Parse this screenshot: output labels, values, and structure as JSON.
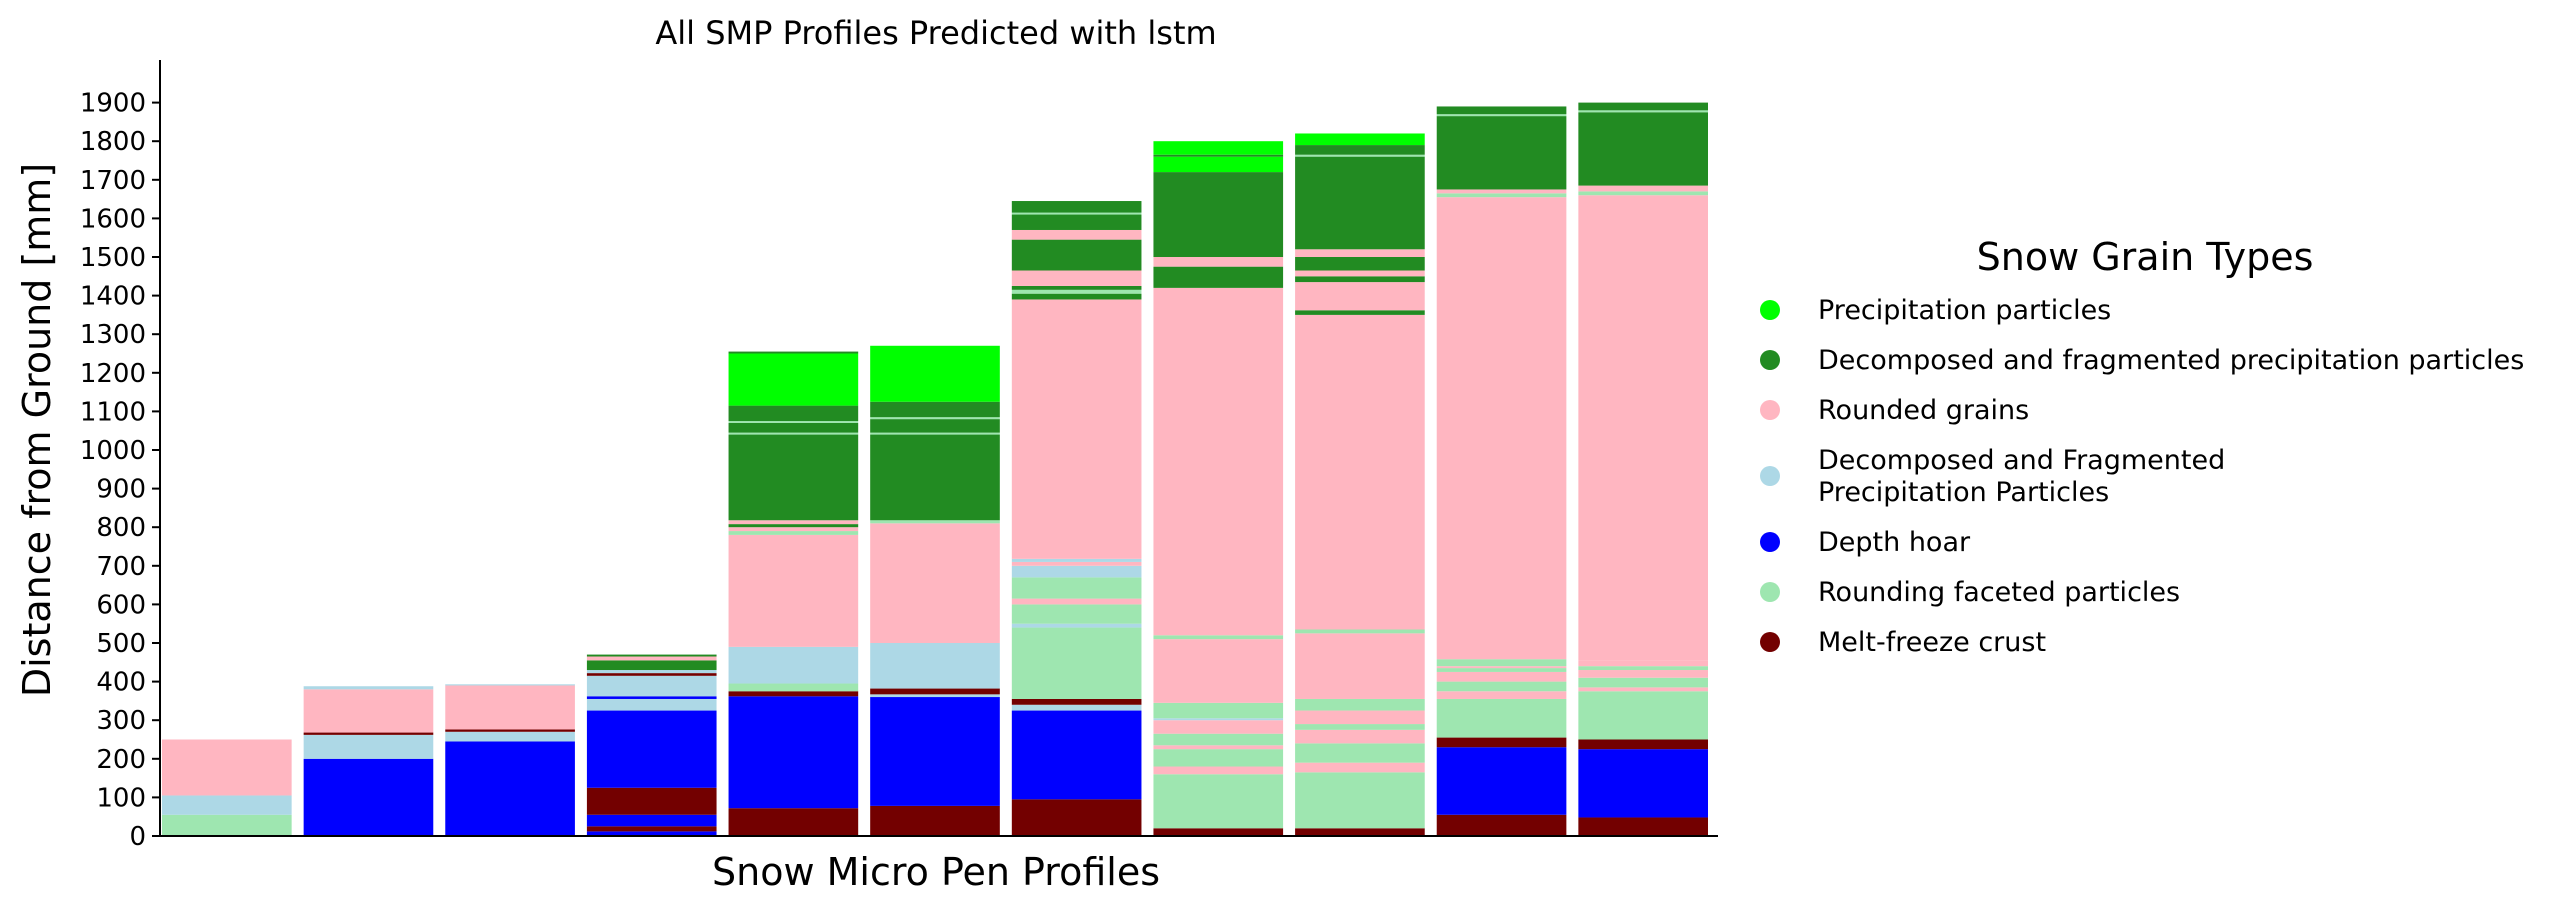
{
  "chart_data": {
    "type": "bar",
    "stacked": true,
    "title": "All SMP Profiles Predicted with lstm",
    "xlabel": "Snow Micro Pen Profiles",
    "ylabel": "Distance from Ground [mm]",
    "ylim": [
      0,
      2000
    ],
    "yticks": [
      0,
      100,
      200,
      300,
      400,
      500,
      600,
      700,
      800,
      900,
      1000,
      1100,
      1200,
      1300,
      1400,
      1500,
      1600,
      1700,
      1800,
      1900
    ],
    "grid": false,
    "legend_position": "right",
    "legend": {
      "title": "Snow Grain Types",
      "entries": [
        {
          "key": "pp",
          "label": "Precipitation particles",
          "color": "#00ff00"
        },
        {
          "key": "df",
          "label": "Decomposed and fragmented precipitation particles",
          "color": "#228b22"
        },
        {
          "key": "rg",
          "label": "Rounded grains",
          "color": "#ffb6c1"
        },
        {
          "key": "dfpp",
          "label_lines": [
            "Decomposed and Fragmented",
            "Precipitation Particles"
          ],
          "color": "#add8e6"
        },
        {
          "key": "dh",
          "label": "Depth hoar",
          "color": "#0000ff"
        },
        {
          "key": "rfp",
          "label": "Rounding faceted particles",
          "color": "#9ee6b0"
        },
        {
          "key": "mfcr",
          "label": "Melt-freeze crust",
          "color": "#730000"
        }
      ]
    },
    "profiles": [
      {
        "segments": [
          [
            "rfp",
            0,
            55
          ],
          [
            "dfpp",
            55,
            105
          ],
          [
            "rg",
            105,
            250
          ]
        ]
      },
      {
        "segments": [
          [
            "dh",
            0,
            200
          ],
          [
            "dfpp",
            200,
            262
          ],
          [
            "mfcr",
            262,
            268
          ],
          [
            "rg",
            268,
            380
          ],
          [
            "dfpp",
            380,
            388
          ]
        ]
      },
      {
        "segments": [
          [
            "dh",
            0,
            245
          ],
          [
            "dfpp",
            245,
            270
          ],
          [
            "mfcr",
            270,
            276
          ],
          [
            "rg",
            276,
            390
          ],
          [
            "dfpp",
            390,
            393
          ]
        ]
      },
      {
        "segments": [
          [
            "dh",
            0,
            12
          ],
          [
            "mfcr",
            12,
            25
          ],
          [
            "dh",
            25,
            55
          ],
          [
            "mfcr",
            55,
            125
          ],
          [
            "dh",
            125,
            325
          ],
          [
            "dfpp",
            325,
            355
          ],
          [
            "dh",
            355,
            362
          ],
          [
            "dfpp",
            362,
            415
          ],
          [
            "mfcr",
            415,
            422
          ],
          [
            "dfpp",
            422,
            430
          ],
          [
            "df",
            430,
            455
          ],
          [
            "rg",
            455,
            465
          ],
          [
            "df",
            465,
            470
          ]
        ]
      },
      {
        "segments": [
          [
            "mfcr",
            0,
            72
          ],
          [
            "dh",
            72,
            362
          ],
          [
            "mfcr",
            362,
            375
          ],
          [
            "rfp",
            375,
            395
          ],
          [
            "dfpp",
            395,
            490
          ],
          [
            "rg",
            490,
            780
          ],
          [
            "rfp",
            780,
            790
          ],
          [
            "rg",
            790,
            800
          ],
          [
            "df",
            800,
            808
          ],
          [
            "rg",
            808,
            818
          ],
          [
            "df",
            818,
            1040
          ],
          [
            "rfp",
            1040,
            1045
          ],
          [
            "df",
            1045,
            1070
          ],
          [
            "rfp",
            1070,
            1075
          ],
          [
            "df",
            1075,
            1115
          ],
          [
            "pp",
            1115,
            1250
          ],
          [
            "df",
            1250,
            1255
          ]
        ]
      },
      {
        "segments": [
          [
            "mfcr",
            0,
            78
          ],
          [
            "dh",
            78,
            360
          ],
          [
            "dfpp",
            360,
            367
          ],
          [
            "mfcr",
            367,
            382
          ],
          [
            "dfpp",
            382,
            500
          ],
          [
            "rg",
            500,
            810
          ],
          [
            "rfp",
            810,
            818
          ],
          [
            "df",
            818,
            1040
          ],
          [
            "rfp",
            1040,
            1045
          ],
          [
            "df",
            1045,
            1080
          ],
          [
            "rfp",
            1080,
            1085
          ],
          [
            "df",
            1085,
            1125
          ],
          [
            "pp",
            1125,
            1270
          ]
        ]
      },
      {
        "segments": [
          [
            "mfcr",
            0,
            95
          ],
          [
            "dh",
            95,
            325
          ],
          [
            "dfpp",
            325,
            340
          ],
          [
            "mfcr",
            340,
            355
          ],
          [
            "rfp",
            355,
            540
          ],
          [
            "dfpp",
            540,
            550
          ],
          [
            "rfp",
            550,
            600
          ],
          [
            "rg",
            600,
            615
          ],
          [
            "rfp",
            615,
            670
          ],
          [
            "dfpp",
            670,
            700
          ],
          [
            "rg",
            700,
            710
          ],
          [
            "dfpp",
            710,
            718
          ],
          [
            "rg",
            718,
            1390
          ],
          [
            "df",
            1390,
            1405
          ],
          [
            "rfp",
            1405,
            1415
          ],
          [
            "df",
            1415,
            1425
          ],
          [
            "rg",
            1425,
            1465
          ],
          [
            "df",
            1465,
            1545
          ],
          [
            "rg",
            1545,
            1570
          ],
          [
            "df",
            1570,
            1610
          ],
          [
            "rfp",
            1610,
            1615
          ],
          [
            "df",
            1615,
            1645
          ]
        ]
      },
      {
        "segments": [
          [
            "mfcr",
            0,
            20
          ],
          [
            "rfp",
            20,
            160
          ],
          [
            "rg",
            160,
            180
          ],
          [
            "rfp",
            180,
            225
          ],
          [
            "rg",
            225,
            235
          ],
          [
            "rfp",
            235,
            265
          ],
          [
            "rg",
            265,
            300
          ],
          [
            "dfpp",
            300,
            305
          ],
          [
            "rfp",
            305,
            345
          ],
          [
            "rg",
            345,
            510
          ],
          [
            "rfp",
            510,
            520
          ],
          [
            "rg",
            520,
            1420
          ],
          [
            "df",
            1420,
            1475
          ],
          [
            "rg",
            1475,
            1500
          ],
          [
            "df",
            1500,
            1720
          ],
          [
            "pp",
            1720,
            1760
          ],
          [
            "df",
            1760,
            1765
          ],
          [
            "pp",
            1765,
            1800
          ]
        ]
      },
      {
        "segments": [
          [
            "mfcr",
            0,
            20
          ],
          [
            "rfp",
            20,
            165
          ],
          [
            "rg",
            165,
            190
          ],
          [
            "rfp",
            190,
            240
          ],
          [
            "rg",
            240,
            275
          ],
          [
            "rfp",
            275,
            290
          ],
          [
            "rg",
            290,
            325
          ],
          [
            "rfp",
            325,
            355
          ],
          [
            "rg",
            355,
            525
          ],
          [
            "rfp",
            525,
            535
          ],
          [
            "rg",
            535,
            1350
          ],
          [
            "df",
            1350,
            1362
          ],
          [
            "rg",
            1362,
            1435
          ],
          [
            "df",
            1435,
            1450
          ],
          [
            "rg",
            1450,
            1465
          ],
          [
            "df",
            1465,
            1500
          ],
          [
            "rg",
            1500,
            1520
          ],
          [
            "df",
            1520,
            1760
          ],
          [
            "rfp",
            1760,
            1765
          ],
          [
            "df",
            1765,
            1790
          ],
          [
            "pp",
            1790,
            1820
          ]
        ]
      },
      {
        "segments": [
          [
            "mfcr",
            0,
            55
          ],
          [
            "dh",
            55,
            230
          ],
          [
            "mfcr",
            230,
            255
          ],
          [
            "rfp",
            255,
            355
          ],
          [
            "rg",
            355,
            375
          ],
          [
            "rfp",
            375,
            400
          ],
          [
            "rg",
            400,
            425
          ],
          [
            "rfp",
            425,
            435
          ],
          [
            "rg",
            435,
            440
          ],
          [
            "rfp",
            440,
            458
          ],
          [
            "rg",
            458,
            1655
          ],
          [
            "rfp",
            1655,
            1665
          ],
          [
            "rg",
            1665,
            1675
          ],
          [
            "df",
            1675,
            1865
          ],
          [
            "rfp",
            1865,
            1870
          ],
          [
            "df",
            1870,
            1890
          ]
        ]
      },
      {
        "segments": [
          [
            "mfcr",
            0,
            48
          ],
          [
            "dh",
            48,
            225
          ],
          [
            "mfcr",
            225,
            250
          ],
          [
            "rfp",
            250,
            375
          ],
          [
            "rg",
            375,
            385
          ],
          [
            "rfp",
            385,
            410
          ],
          [
            "rg",
            410,
            430
          ],
          [
            "rfp",
            430,
            440
          ],
          [
            "rg",
            440,
            455
          ],
          [
            "rg",
            455,
            1660
          ],
          [
            "rfp",
            1660,
            1670
          ],
          [
            "rg",
            1670,
            1685
          ],
          [
            "df",
            1685,
            1875
          ],
          [
            "rfp",
            1875,
            1880
          ],
          [
            "df",
            1880,
            1900
          ]
        ]
      }
    ]
  }
}
